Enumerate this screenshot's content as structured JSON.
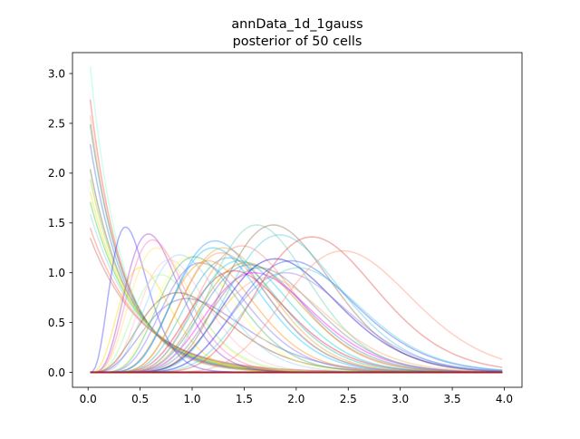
{
  "chart_data": {
    "type": "line",
    "title": "annData_1d_1gauss",
    "subtitle": "posterior of 50 cells",
    "xlabel": "",
    "ylabel": "",
    "xlim": [
      -0.15,
      4.17
    ],
    "ylim": [
      -0.15,
      3.21
    ],
    "xticks": [
      "0.0",
      "0.5",
      "1.0",
      "1.5",
      "2.0",
      "2.5",
      "3.0",
      "3.5",
      "4.0"
    ],
    "yticks": [
      "0.0",
      "0.5",
      "1.0",
      "1.5",
      "2.0",
      "2.5",
      "3.0"
    ],
    "grid": false,
    "legend": "none",
    "x_range": [
      0.02,
      3.98
    ],
    "series": [
      {
        "shape": "decay",
        "start": 3.07,
        "rate": 3.3,
        "color": "#7fffd4"
      },
      {
        "shape": "decay",
        "start": 2.74,
        "rate": 3.1,
        "color": "#ff4040"
      },
      {
        "shape": "decay",
        "start": 2.58,
        "rate": 3.0,
        "color": "#ffa07a"
      },
      {
        "shape": "decay",
        "start": 2.49,
        "rate": 2.9,
        "color": "#2e8b57"
      },
      {
        "shape": "decay",
        "start": 2.29,
        "rate": 2.8,
        "color": "#4169e1"
      },
      {
        "shape": "decay",
        "start": 2.04,
        "rate": 2.6,
        "color": "#556b2f"
      },
      {
        "shape": "decay",
        "start": 1.94,
        "rate": 2.5,
        "color": "#9acd32"
      },
      {
        "shape": "decay",
        "start": 1.81,
        "rate": 2.4,
        "color": "#ffd700"
      },
      {
        "shape": "decay",
        "start": 1.71,
        "rate": 2.3,
        "color": "#32cd32"
      },
      {
        "shape": "decay",
        "start": 1.59,
        "rate": 2.2,
        "color": "#87ceeb"
      },
      {
        "shape": "decay",
        "start": 1.45,
        "rate": 2.1,
        "color": "#ff6347"
      },
      {
        "shape": "decay",
        "start": 1.35,
        "rate": 2.0,
        "color": "#cd5c5c"
      },
      {
        "shape": "peak",
        "mode": 0.36,
        "height": 1.46,
        "k": 4,
        "color": "#3a3aff"
      },
      {
        "shape": "peak",
        "mode": 0.5,
        "height": 1.05,
        "k": 4,
        "color": "#ffd700"
      },
      {
        "shape": "peak",
        "mode": 0.58,
        "height": 1.39,
        "k": 5,
        "color": "#9932cc"
      },
      {
        "shape": "peak",
        "mode": 0.62,
        "height": 1.33,
        "k": 5,
        "color": "#ff69b4"
      },
      {
        "shape": "peak",
        "mode": 0.66,
        "height": 1.25,
        "k": 5,
        "color": "#ffe066"
      },
      {
        "shape": "peak",
        "mode": 0.7,
        "height": 0.98,
        "k": 5,
        "color": "#98fb98"
      },
      {
        "shape": "peak",
        "mode": 0.78,
        "height": 1.13,
        "k": 6,
        "color": "#ffb6c1"
      },
      {
        "shape": "peak",
        "mode": 0.86,
        "height": 0.8,
        "k": 4,
        "color": "#8b4513"
      },
      {
        "shape": "peak",
        "mode": 0.88,
        "height": 1.18,
        "k": 6,
        "color": "#87cefa"
      },
      {
        "shape": "peak",
        "mode": 0.95,
        "height": 0.74,
        "k": 4,
        "color": "#6a5acd"
      },
      {
        "shape": "peak",
        "mode": 0.98,
        "height": 1.16,
        "k": 7,
        "color": "#ffff66"
      },
      {
        "shape": "peak",
        "mode": 1.02,
        "height": 1.16,
        "k": 7,
        "color": "#3cb371"
      },
      {
        "shape": "peak",
        "mode": 1.08,
        "height": 1.1,
        "k": 7,
        "color": "#7b68ee"
      },
      {
        "shape": "peak",
        "mode": 1.15,
        "height": 1.12,
        "k": 8,
        "color": "#ff8c00"
      },
      {
        "shape": "peak",
        "mode": 1.2,
        "height": 1.25,
        "k": 8,
        "color": "#00bfff"
      },
      {
        "shape": "peak",
        "mode": 1.22,
        "height": 1.32,
        "k": 8,
        "color": "#1e90ff"
      },
      {
        "shape": "peak",
        "mode": 1.28,
        "height": 1.2,
        "k": 9,
        "color": "#ff7f50"
      },
      {
        "shape": "peak",
        "mode": 1.3,
        "height": 1.25,
        "k": 9,
        "color": "#daa520"
      },
      {
        "shape": "peak",
        "mode": 1.35,
        "height": 1.15,
        "k": 9,
        "color": "#20b2aa"
      },
      {
        "shape": "peak",
        "mode": 1.4,
        "height": 1.02,
        "k": 9,
        "color": "#dc143c"
      },
      {
        "shape": "peak",
        "mode": 1.45,
        "height": 1.12,
        "k": 10,
        "color": "#00ced1"
      },
      {
        "shape": "peak",
        "mode": 1.48,
        "height": 1.27,
        "k": 10,
        "color": "#fa8072"
      },
      {
        "shape": "peak",
        "mode": 1.52,
        "height": 1.1,
        "k": 10,
        "color": "#b8860b"
      },
      {
        "shape": "peak",
        "mode": 1.55,
        "height": 1.08,
        "k": 10,
        "color": "#4682b4"
      },
      {
        "shape": "peak",
        "mode": 1.6,
        "height": 1.0,
        "k": 10,
        "color": "#ff00ff"
      },
      {
        "shape": "peak",
        "mode": 1.62,
        "height": 1.48,
        "k": 12,
        "color": "#66cdaa"
      },
      {
        "shape": "peak",
        "mode": 1.65,
        "height": 1.05,
        "k": 11,
        "color": "#708090"
      },
      {
        "shape": "peak",
        "mode": 1.72,
        "height": 0.95,
        "k": 11,
        "color": "#f4a460"
      },
      {
        "shape": "peak",
        "mode": 1.78,
        "height": 1.48,
        "k": 12,
        "color": "#8b6b4b"
      },
      {
        "shape": "peak",
        "mode": 1.8,
        "height": 1.14,
        "k": 11,
        "color": "#0000cd"
      },
      {
        "shape": "peak",
        "mode": 1.84,
        "height": 1.38,
        "k": 12,
        "color": "#40c4e0"
      },
      {
        "shape": "peak",
        "mode": 1.9,
        "height": 1.0,
        "k": 12,
        "color": "#9370db"
      },
      {
        "shape": "peak",
        "mode": 1.95,
        "height": 1.12,
        "k": 12,
        "color": "#2f4fff"
      },
      {
        "shape": "peak",
        "mode": 2.02,
        "height": 1.05,
        "k": 13,
        "color": "#48d1cc"
      },
      {
        "shape": "peak",
        "mode": 2.15,
        "height": 1.36,
        "k": 14,
        "color": "#e04040"
      },
      {
        "shape": "peak",
        "mode": 2.45,
        "height": 1.22,
        "k": 16,
        "color": "#ff8c69"
      },
      {
        "shape": "flat",
        "value": 0.0,
        "color": "#00008b"
      },
      {
        "shape": "flat",
        "value": 0.0,
        "color": "#b22222"
      }
    ]
  }
}
